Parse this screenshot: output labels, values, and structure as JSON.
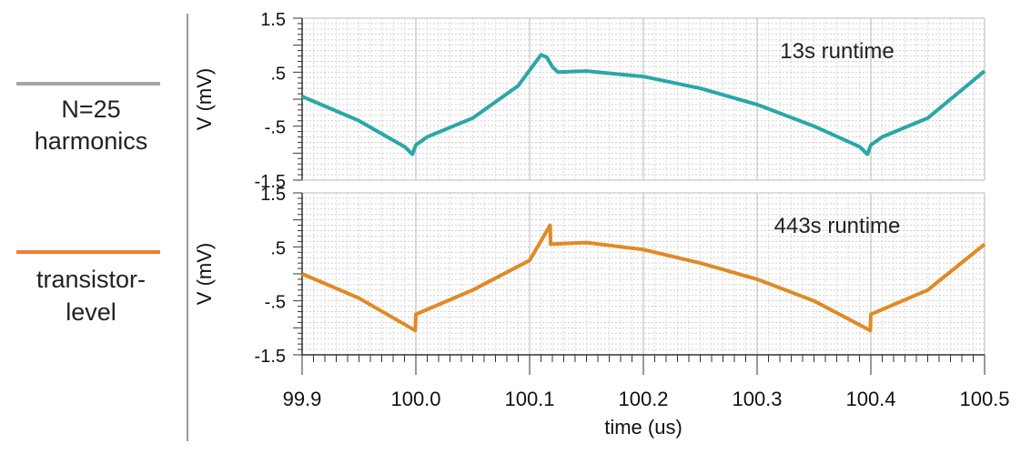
{
  "legend": {
    "entries": [
      {
        "lines": [
          "N=25",
          "harmonics"
        ],
        "color": "#a6a6a6"
      },
      {
        "lines": [
          "transistor-",
          "level"
        ],
        "color": "#ed7d31"
      }
    ]
  },
  "chart_data": [
    {
      "type": "line",
      "ylabel": "V (mV)",
      "annotation": "13s runtime",
      "xlim": [
        99.9,
        100.5
      ],
      "ylim": [
        -1.5,
        1.5
      ],
      "ytick_labels": [
        "1.5",
        ".5",
        "-.5",
        "-1.5"
      ],
      "yticks": [
        1.5,
        0.5,
        -0.5,
        -1.5
      ],
      "grid": true,
      "series": [
        {
          "color": "#2aa7a7",
          "x": [
            99.9,
            99.95,
            99.99,
            99.997,
            100.0,
            100.01,
            100.05,
            100.09,
            100.11,
            100.115,
            100.12,
            100.125,
            100.15,
            100.2,
            100.25,
            100.3,
            100.35,
            100.39,
            100.397,
            100.4,
            100.41,
            100.45,
            100.5
          ],
          "y": [
            0.05,
            -0.4,
            -0.88,
            -1.02,
            -0.85,
            -0.7,
            -0.35,
            0.25,
            0.82,
            0.78,
            0.6,
            0.5,
            0.52,
            0.42,
            0.2,
            -0.1,
            -0.5,
            -0.88,
            -1.02,
            -0.85,
            -0.7,
            -0.35,
            0.52
          ]
        }
      ]
    },
    {
      "type": "line",
      "ylabel": "V (mV)",
      "annotation": "443s runtime",
      "xlim": [
        99.9,
        100.5
      ],
      "ylim": [
        -1.5,
        1.5
      ],
      "ytick_labels": [
        "1.5",
        ".5",
        "-.5",
        "-1.5"
      ],
      "yticks": [
        1.5,
        0.5,
        -0.5,
        -1.5
      ],
      "xtick_labels": [
        "99.9",
        "100.0",
        "100.1",
        "100.2",
        "100.3",
        "100.4",
        "100.5"
      ],
      "xticks": [
        99.9,
        100.0,
        100.1,
        100.2,
        100.3,
        100.4,
        100.5
      ],
      "xlabel": "time (us)",
      "grid": true,
      "series": [
        {
          "color": "#e08a25",
          "x": [
            99.9,
            99.95,
            99.9995,
            100.0,
            100.05,
            100.1,
            100.118,
            100.1185,
            100.15,
            100.2,
            100.25,
            100.3,
            100.35,
            100.3995,
            100.4,
            100.45,
            100.5
          ],
          "y": [
            0.0,
            -0.45,
            -1.05,
            -0.75,
            -0.3,
            0.25,
            0.9,
            0.55,
            0.58,
            0.45,
            0.2,
            -0.1,
            -0.5,
            -1.05,
            -0.75,
            -0.3,
            0.55
          ]
        }
      ]
    }
  ]
}
